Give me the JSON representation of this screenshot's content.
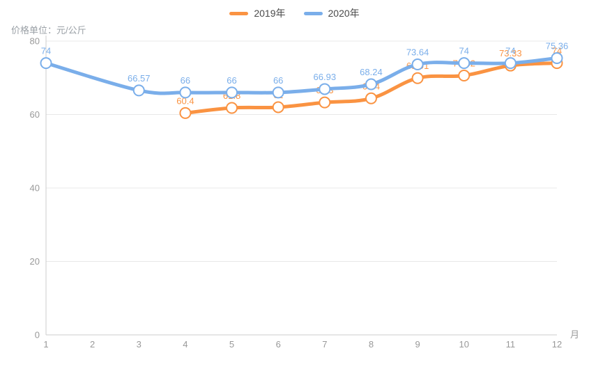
{
  "title": "价格单位：元/公斤",
  "colors": {
    "series_2019": "#fa9342",
    "series_2020": "#7aaeea",
    "axis_text": "#999999",
    "grid_line": "#e8e8e8",
    "axis_line": "#cccccc",
    "legend_text": "#4a4a4a",
    "marker_fill": "#ffffff",
    "background": "#ffffff"
  },
  "legend": {
    "items": [
      {
        "label": "2019年",
        "color": "#fa9342"
      },
      {
        "label": "2020年",
        "color": "#7aaeea"
      }
    ]
  },
  "chart_data": {
    "type": "line",
    "title": "价格单位：元/公斤",
    "xlabel": "月",
    "ylabel": "价格单位：元/公斤",
    "x": [
      1,
      2,
      3,
      4,
      5,
      6,
      7,
      8,
      9,
      10,
      11,
      12
    ],
    "ylim": [
      0,
      80
    ],
    "yticks": [
      0,
      20,
      40,
      60,
      80
    ],
    "grid": true,
    "smooth": true,
    "legend_position": "top",
    "series": [
      {
        "name": "2019年",
        "color": "#fa9342",
        "values": [
          null,
          null,
          null,
          60.4,
          61.8,
          62,
          63.3,
          64.4,
          69.91,
          70.62,
          73.33,
          74
        ]
      },
      {
        "name": "2020年",
        "color": "#7aaeea",
        "values": [
          74,
          null,
          66.57,
          66,
          66,
          66,
          66.93,
          68.24,
          73.64,
          74,
          74,
          75.36
        ]
      }
    ]
  }
}
